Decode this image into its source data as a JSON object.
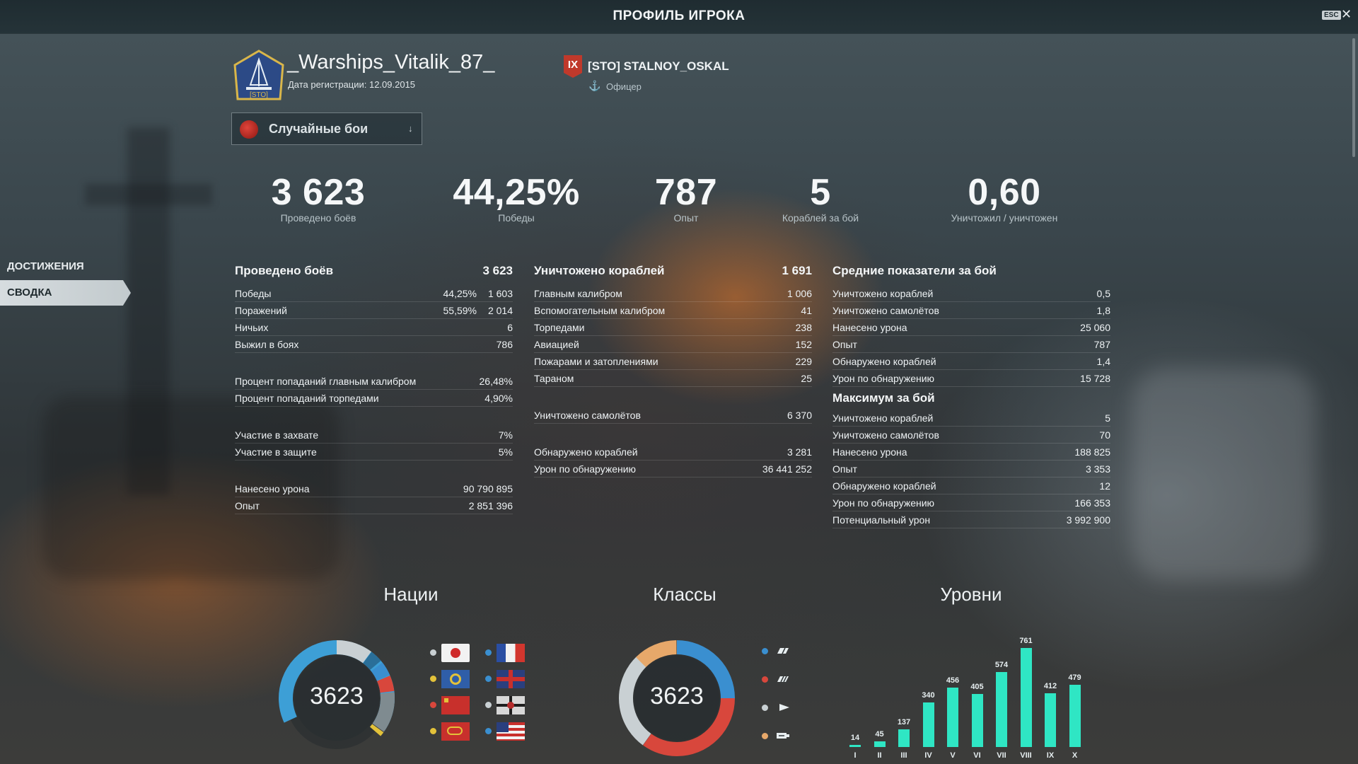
{
  "header": {
    "title": "ПРОФИЛЬ ИГРОКА",
    "esc_label": "ESC",
    "close_glyph": "✕"
  },
  "player": {
    "name": "_Warships_Vitalik_87_",
    "reg_date": "Дата регистрации: 12.09.2015",
    "emblem_tag": "[STO]",
    "clan_tier": "IX",
    "clan_name": "[STO] STALNOY_OSKAL",
    "clan_role": "Офицер"
  },
  "mode_select": {
    "label": "Случайные бои",
    "arrow": "↓"
  },
  "kpis": [
    {
      "value": "3 623",
      "label": "Проведено боёв"
    },
    {
      "value": "44,25%",
      "label": "Победы"
    },
    {
      "value": "787",
      "label": "Опыт"
    },
    {
      "value": "5",
      "label": "Кораблей за бой"
    },
    {
      "value": "0,60",
      "label": "Уничтожил / уничтожен"
    }
  ],
  "sidebar": {
    "items": [
      {
        "label": "ДОСТИЖЕНИЯ"
      },
      {
        "label": "СВОДКА"
      }
    ]
  },
  "col1": {
    "head": {
      "label": "Проведено боёв",
      "value": "3 623"
    },
    "rows": [
      {
        "label": "Победы",
        "pct": "44,25%",
        "value": "1 603"
      },
      {
        "label": "Поражений",
        "pct": "55,59%",
        "value": "2 014"
      },
      {
        "label": "Ничьих",
        "value": "6"
      },
      {
        "label": "Выжил в боях",
        "value": "786"
      },
      {
        "label": "Процент попаданий главным калибром",
        "value": "26,48%"
      },
      {
        "label": "Процент попаданий торпедами",
        "value": "4,90%"
      },
      {
        "label": "Участие в захвате",
        "value": "7%"
      },
      {
        "label": "Участие в защите",
        "value": "5%"
      },
      {
        "label": "Нанесено урона",
        "value": "90 790 895"
      },
      {
        "label": "Опыт",
        "value": "2 851 396"
      }
    ]
  },
  "col2": {
    "head": {
      "label": "Уничтожено кораблей",
      "value": "1 691"
    },
    "rows": [
      {
        "label": "Главным калибром",
        "value": "1 006"
      },
      {
        "label": "Вспомогательным калибром",
        "value": "41"
      },
      {
        "label": "Торпедами",
        "value": "238"
      },
      {
        "label": "Авиацией",
        "value": "152"
      },
      {
        "label": "Пожарами и затоплениями",
        "value": "229"
      },
      {
        "label": "Тараном",
        "value": "25"
      },
      {
        "label": "Уничтожено самолётов",
        "value": "6 370"
      },
      {
        "label": "Обнаружено кораблей",
        "value": "3 281"
      },
      {
        "label": "Урон по обнаружению",
        "value": "36 441 252"
      }
    ]
  },
  "col3": {
    "head": {
      "label": "Средние показатели за бой"
    },
    "rows": [
      {
        "label": "Уничтожено кораблей",
        "value": "0,5"
      },
      {
        "label": "Уничтожено самолётов",
        "value": "1,8"
      },
      {
        "label": "Нанесено урона",
        "value": "25 060"
      },
      {
        "label": "Опыт",
        "value": "787"
      },
      {
        "label": "Обнаружено кораблей",
        "value": "1,4"
      },
      {
        "label": "Урон по обнаружению",
        "value": "15 728"
      }
    ],
    "head2": {
      "label": "Максимум за бой"
    },
    "rows2": [
      {
        "label": "Уничтожено кораблей",
        "value": "5"
      },
      {
        "label": "Уничтожено самолётов",
        "value": "70"
      },
      {
        "label": "Нанесено урона",
        "value": "188 825"
      },
      {
        "label": "Опыт",
        "value": "3 353"
      },
      {
        "label": "Обнаружено кораблей",
        "value": "12"
      },
      {
        "label": "Урон по обнаружению",
        "value": "166 353"
      },
      {
        "label": "Потенциальный урон",
        "value": "3 992 900"
      }
    ]
  },
  "charts": {
    "nations_title": "Нации",
    "classes_title": "Классы",
    "tiers_title": "Уровни",
    "nations_total": "3623",
    "classes_total": "3623",
    "colors": {
      "bar": "#2fe6c4",
      "blue": "#3a8fd0",
      "red": "#d8473c",
      "grey": "#c9d0d3",
      "orange": "#e7a86a",
      "yellow": "#e3c23a"
    },
    "nations_legend": [
      {
        "nation": "japan",
        "dot": "#c9d0d3"
      },
      {
        "nation": "france",
        "dot": "#3a8fd0"
      },
      {
        "nation": "pan-asia",
        "dot": "#e3c23a"
      },
      {
        "nation": "uk",
        "dot": "#3a8fd0"
      },
      {
        "nation": "ussr",
        "dot": "#d8473c"
      },
      {
        "nation": "germany",
        "dot": "#c9d0d3"
      },
      {
        "nation": "china",
        "dot": "#e3c23a"
      },
      {
        "nation": "usa",
        "dot": "#3a8fd0"
      }
    ],
    "classes_legend": [
      {
        "class": "destroyer-icon",
        "dot": "#3a8fd0"
      },
      {
        "class": "cruiser-icon",
        "dot": "#d8473c"
      },
      {
        "class": "battleship-icon",
        "dot": "#c9d0d3"
      },
      {
        "class": "aircraft-carrier-icon",
        "dot": "#e7a86a"
      }
    ]
  },
  "chart_data": {
    "type": "bar",
    "title": "Уровни",
    "categories": [
      "I",
      "II",
      "III",
      "IV",
      "V",
      "VI",
      "VII",
      "VIII",
      "IX",
      "X"
    ],
    "values": [
      14,
      45,
      137,
      340,
      456,
      405,
      574,
      761,
      412,
      479
    ],
    "ylim": [
      0,
      761
    ]
  }
}
